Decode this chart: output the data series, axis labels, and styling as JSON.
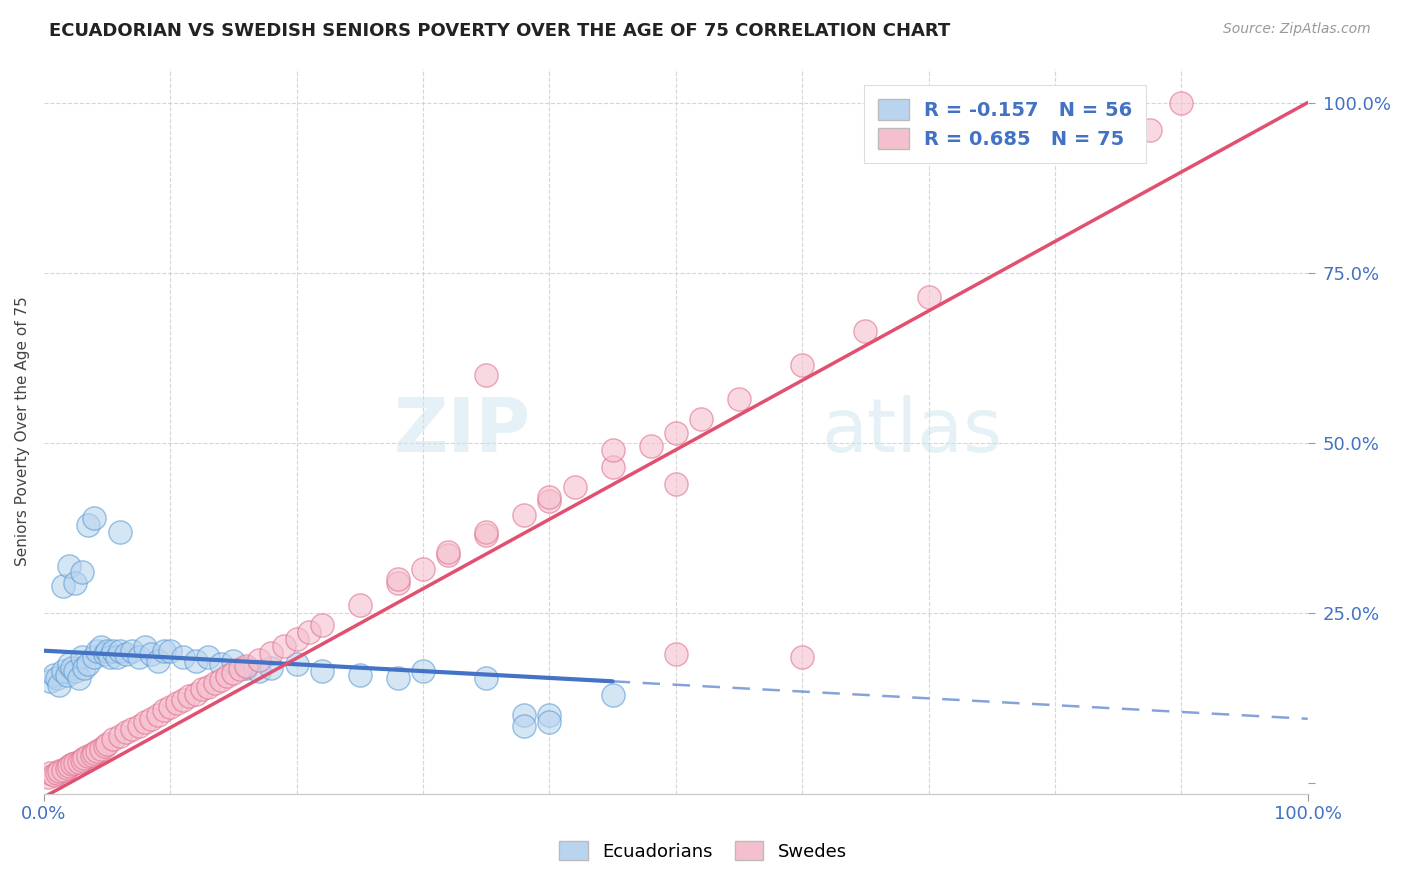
{
  "title": "ECUADORIAN VS SWEDISH SENIORS POVERTY OVER THE AGE OF 75 CORRELATION CHART",
  "source": "Source: ZipAtlas.com",
  "ylabel": "Seniors Poverty Over the Age of 75",
  "xlim": [
    0,
    1
  ],
  "ylim": [
    -0.015,
    1.05
  ],
  "r_ecuador": -0.157,
  "n_ecuador": 56,
  "r_sweden": 0.685,
  "n_sweden": 75,
  "legend_label_ecuador": "Ecuadorians",
  "legend_label_sweden": "Swedes",
  "color_ecuador_fill": "#b8d4ee",
  "color_ecuador_edge": "#5b9bd5",
  "color_ecuador_line": "#4472c4",
  "color_sweden_fill": "#f5c0ce",
  "color_sweden_edge": "#e07090",
  "color_sweden_line": "#e05070",
  "watermark_color": "#cce4f0",
  "background_color": "#ffffff",
  "title_fontsize": 13,
  "ecuador_line_intercept": 0.195,
  "ecuador_line_slope": -0.1,
  "ecuador_line_solid_end": 0.45,
  "sweden_line_intercept": -0.02,
  "sweden_line_slope": 1.02,
  "ecuador_scatter_x": [
    0.005,
    0.008,
    0.01,
    0.012,
    0.015,
    0.018,
    0.02,
    0.022,
    0.025,
    0.028,
    0.03,
    0.032,
    0.035,
    0.04,
    0.042,
    0.045,
    0.048,
    0.05,
    0.052,
    0.055,
    0.058,
    0.06,
    0.065,
    0.07,
    0.075,
    0.08,
    0.085,
    0.09,
    0.095,
    0.1,
    0.11,
    0.12,
    0.13,
    0.14,
    0.15,
    0.16,
    0.17,
    0.18,
    0.2,
    0.22,
    0.25,
    0.28,
    0.3,
    0.35,
    0.38,
    0.4,
    0.45,
    0.015,
    0.02,
    0.025,
    0.03,
    0.035,
    0.04,
    0.06,
    0.38,
    0.4
  ],
  "ecuador_scatter_y": [
    0.15,
    0.16,
    0.155,
    0.145,
    0.165,
    0.16,
    0.175,
    0.17,
    0.165,
    0.155,
    0.185,
    0.17,
    0.175,
    0.185,
    0.195,
    0.2,
    0.19,
    0.195,
    0.185,
    0.195,
    0.185,
    0.195,
    0.19,
    0.195,
    0.185,
    0.2,
    0.19,
    0.18,
    0.195,
    0.195,
    0.185,
    0.18,
    0.185,
    0.175,
    0.18,
    0.17,
    0.165,
    0.17,
    0.175,
    0.165,
    0.16,
    0.155,
    0.165,
    0.155,
    0.1,
    0.1,
    0.13,
    0.29,
    0.32,
    0.295,
    0.31,
    0.38,
    0.39,
    0.37,
    0.085,
    0.09
  ],
  "sweden_scatter_x": [
    0.003,
    0.005,
    0.008,
    0.01,
    0.012,
    0.015,
    0.018,
    0.02,
    0.022,
    0.025,
    0.028,
    0.03,
    0.032,
    0.035,
    0.038,
    0.04,
    0.042,
    0.045,
    0.048,
    0.05,
    0.055,
    0.06,
    0.065,
    0.07,
    0.075,
    0.08,
    0.085,
    0.09,
    0.095,
    0.1,
    0.105,
    0.11,
    0.115,
    0.12,
    0.125,
    0.13,
    0.135,
    0.14,
    0.145,
    0.15,
    0.155,
    0.16,
    0.17,
    0.18,
    0.19,
    0.2,
    0.21,
    0.22,
    0.25,
    0.28,
    0.3,
    0.32,
    0.35,
    0.38,
    0.4,
    0.42,
    0.45,
    0.48,
    0.5,
    0.52,
    0.55,
    0.6,
    0.65,
    0.7,
    0.28,
    0.32,
    0.35,
    0.45,
    0.5,
    0.6,
    0.35,
    0.4,
    0.5,
    0.9,
    0.875
  ],
  "sweden_scatter_y": [
    0.01,
    0.015,
    0.012,
    0.015,
    0.018,
    0.02,
    0.022,
    0.025,
    0.028,
    0.03,
    0.032,
    0.035,
    0.038,
    0.04,
    0.042,
    0.045,
    0.048,
    0.05,
    0.055,
    0.058,
    0.065,
    0.07,
    0.075,
    0.08,
    0.085,
    0.09,
    0.095,
    0.1,
    0.108,
    0.112,
    0.118,
    0.122,
    0.128,
    0.132,
    0.138,
    0.142,
    0.148,
    0.152,
    0.158,
    0.162,
    0.168,
    0.172,
    0.182,
    0.192,
    0.202,
    0.212,
    0.222,
    0.232,
    0.262,
    0.295,
    0.315,
    0.335,
    0.365,
    0.395,
    0.415,
    0.435,
    0.465,
    0.495,
    0.515,
    0.535,
    0.565,
    0.615,
    0.665,
    0.715,
    0.3,
    0.34,
    0.6,
    0.49,
    0.44,
    0.185,
    0.37,
    0.42,
    0.19,
    1.0,
    0.96
  ]
}
